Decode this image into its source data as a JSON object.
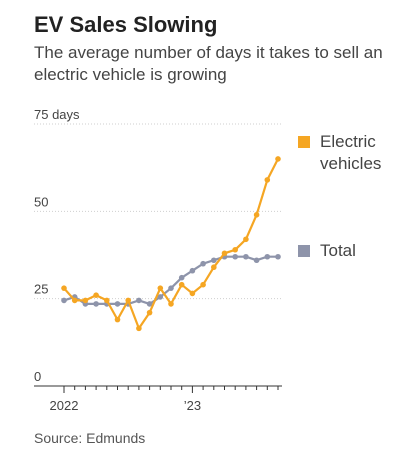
{
  "title": "EV Sales Slowing",
  "subtitle": "The average number of days it takes to sell an electric vehicle is growing",
  "source": "Source: Edmunds",
  "chart_data": {
    "type": "line",
    "y_ticks": [
      "75 days",
      "50",
      "25",
      "0"
    ],
    "y_tick_values": [
      75,
      50,
      25,
      0
    ],
    "x_tick_labels": [
      "2022",
      "’23"
    ],
    "ylim": [
      0,
      75
    ],
    "grid": true,
    "legend_position": "right",
    "x": [
      "2022-01",
      "2022-02",
      "2022-03",
      "2022-04",
      "2022-05",
      "2022-06",
      "2022-07",
      "2022-08",
      "2022-09",
      "2022-10",
      "2022-11",
      "2022-12",
      "2023-01",
      "2023-02",
      "2023-03",
      "2023-04",
      "2023-05",
      "2023-06",
      "2023-07",
      "2023-08",
      "2023-09"
    ],
    "series": [
      {
        "name": "Electric vehicles",
        "color": "#f5a623",
        "values": [
          28,
          24.5,
          24.5,
          26,
          24.5,
          19,
          24.5,
          16.5,
          21,
          28,
          23.5,
          29,
          26.5,
          29,
          34,
          38,
          39,
          42,
          49,
          59,
          65
        ]
      },
      {
        "name": "Total",
        "color": "#8e94aa",
        "values": [
          24.5,
          25.5,
          23.5,
          23.5,
          23.5,
          23.5,
          23.5,
          24.5,
          23.5,
          25.5,
          28,
          31,
          33,
          35,
          36,
          37,
          37,
          37,
          36,
          37,
          37
        ]
      }
    ]
  }
}
